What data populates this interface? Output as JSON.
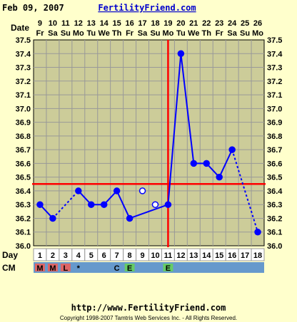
{
  "header": {
    "date_text": "Feb 09, 2007",
    "site_name": "FertilityFriend.com"
  },
  "labels": {
    "date_row": "Date",
    "day_row": "Day",
    "cm_row": "CM"
  },
  "footer": {
    "url": "http://www.FertilityFriend.com",
    "copyright": "Copyright 1998-2007 Tamtris Web Services Inc. - All Rights Reserved."
  },
  "colors": {
    "background": "#ffffcc",
    "plot_fill": "#cccc99",
    "grid": "#999999",
    "temperature_line": "#0000ff",
    "coverline": "#ff0000",
    "ovulation_line": "#ff0000",
    "day_row_fill": "#ffffff",
    "cm_row_fill": "#6699cc",
    "cm_menstrual": "#dd6666",
    "cm_eggwhite": "#66cc66"
  },
  "chart_data": {
    "type": "line",
    "x_dates": [
      "9",
      "10",
      "11",
      "12",
      "13",
      "14",
      "15",
      "16",
      "17",
      "18",
      "19",
      "20",
      "21",
      "22",
      "23",
      "24",
      "25",
      "26"
    ],
    "x_weekdays": [
      "Fr",
      "Sa",
      "Su",
      "Mo",
      "Tu",
      "We",
      "Th",
      "Fr",
      "Sa",
      "Su",
      "Mo",
      "Tu",
      "We",
      "Th",
      "Fr",
      "Sa",
      "Su",
      "Mo"
    ],
    "x_days": [
      1,
      2,
      3,
      4,
      5,
      6,
      7,
      8,
      9,
      10,
      11,
      12,
      13,
      14,
      15,
      16,
      17,
      18
    ],
    "y_ticks": [
      "37.5",
      "37.4",
      "37.3",
      "37.2",
      "37.1",
      "37.0",
      "36.9",
      "36.8",
      "36.7",
      "36.6",
      "36.5",
      "36.4",
      "36.3",
      "36.2",
      "36.1",
      "36.0"
    ],
    "ylim": [
      36.0,
      37.5
    ],
    "temperatures": [
      36.3,
      36.2,
      null,
      36.4,
      36.3,
      36.3,
      36.4,
      36.2,
      36.4,
      36.3,
      36.3,
      37.4,
      36.6,
      36.6,
      36.5,
      36.7,
      null,
      36.1
    ],
    "discarded_days": [
      9,
      10
    ],
    "solid_segments": [
      [
        1,
        2
      ],
      [
        4,
        5
      ],
      [
        5,
        6
      ],
      [
        6,
        7
      ],
      [
        7,
        8
      ],
      [
        8,
        11
      ],
      [
        11,
        12
      ],
      [
        12,
        13
      ],
      [
        13,
        14
      ],
      [
        14,
        15
      ],
      [
        15,
        16
      ]
    ],
    "dashed_segments": [
      [
        2,
        4
      ],
      [
        16,
        18
      ]
    ],
    "coverline": 36.45,
    "ovulation_day": 11,
    "cervical_mucus": [
      "M",
      "M",
      "L",
      "*",
      "",
      "",
      "C",
      "E",
      "",
      "",
      "E",
      "",
      "",
      "",
      "",
      "",
      "",
      ""
    ],
    "cervical_mucus_colors": [
      "menstrual",
      "menstrual",
      "menstrual",
      "none",
      "none",
      "none",
      "none",
      "eggwhite",
      "none",
      "none",
      "eggwhite",
      "none",
      "none",
      "none",
      "none",
      "none",
      "none",
      "none"
    ],
    "grid": true
  }
}
